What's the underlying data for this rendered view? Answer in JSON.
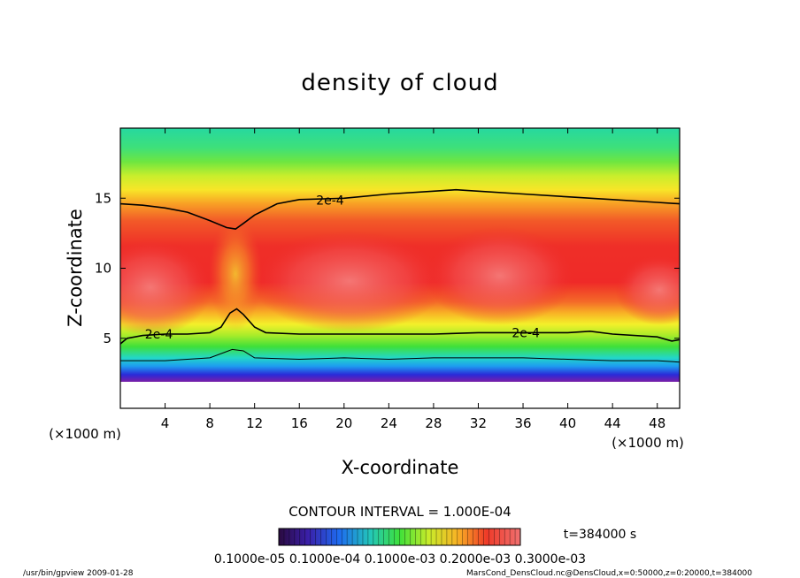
{
  "chart_data": {
    "type": "heatmap",
    "title": "density of cloud",
    "xlabel": "X-coordinate",
    "ylabel": "Z-coordinate",
    "x_unit": "(×1000 m)",
    "z_unit": "(×1000 m)",
    "xlim": [
      0,
      50
    ],
    "ylim": [
      0,
      20
    ],
    "x_ticks": [
      4,
      8,
      12,
      16,
      20,
      24,
      28,
      32,
      36,
      40,
      44,
      48
    ],
    "y_ticks": [
      5,
      10,
      15
    ],
    "colormap": [
      "#7a1fa8",
      "#2a2ad8",
      "#1e9bf0",
      "#23d7d8",
      "#26d98a",
      "#3ee03a",
      "#a8ec2a",
      "#f4f02a",
      "#f8b225",
      "#f3662a",
      "#ef2a28",
      "#f07070"
    ],
    "contours": [
      {
        "level_label": "2e-4",
        "points": [
          [
            0,
            14.6
          ],
          [
            2,
            14.5
          ],
          [
            4,
            14.3
          ],
          [
            6,
            14.0
          ],
          [
            8,
            13.4
          ],
          [
            9.5,
            12.9
          ],
          [
            10.3,
            12.8
          ],
          [
            11,
            13.2
          ],
          [
            12,
            13.8
          ],
          [
            14,
            14.6
          ],
          [
            16,
            14.9
          ],
          [
            20,
            15.0
          ],
          [
            24,
            15.3
          ],
          [
            28,
            15.5
          ],
          [
            30,
            15.6
          ],
          [
            32,
            15.5
          ],
          [
            36,
            15.3
          ],
          [
            40,
            15.1
          ],
          [
            44,
            14.9
          ],
          [
            48,
            14.7
          ],
          [
            50,
            14.6
          ]
        ]
      },
      {
        "level_label": "2e-4",
        "points": [
          [
            0,
            4.6
          ],
          [
            0.6,
            5.0
          ],
          [
            2,
            5.2
          ],
          [
            4,
            5.3
          ],
          [
            6,
            5.3
          ],
          [
            8,
            5.4
          ],
          [
            9,
            5.8
          ],
          [
            9.8,
            6.8
          ],
          [
            10.4,
            7.1
          ],
          [
            11,
            6.7
          ],
          [
            12,
            5.8
          ],
          [
            13,
            5.4
          ],
          [
            16,
            5.3
          ],
          [
            20,
            5.3
          ],
          [
            24,
            5.3
          ],
          [
            28,
            5.3
          ],
          [
            32,
            5.4
          ],
          [
            36,
            5.4
          ],
          [
            40,
            5.4
          ],
          [
            42,
            5.5
          ],
          [
            44,
            5.3
          ],
          [
            48,
            5.1
          ],
          [
            49.3,
            4.8
          ],
          [
            50,
            4.9
          ]
        ]
      }
    ],
    "inner_contour": [
      [
        0,
        3.4
      ],
      [
        4,
        3.4
      ],
      [
        8,
        3.6
      ],
      [
        10,
        4.2
      ],
      [
        11,
        4.1
      ],
      [
        12,
        3.6
      ],
      [
        16,
        3.5
      ],
      [
        20,
        3.6
      ],
      [
        24,
        3.5
      ],
      [
        28,
        3.6
      ],
      [
        32,
        3.6
      ],
      [
        36,
        3.6
      ],
      [
        40,
        3.5
      ],
      [
        44,
        3.4
      ],
      [
        48,
        3.4
      ],
      [
        50,
        3.3
      ]
    ],
    "contour_interval": "CONTOUR INTERVAL = 1.000E-04",
    "time": "t=384000 s",
    "colorbar_labels": "0.1000e-05 0.1000e-04 0.1000e-03 0.2000e-03 0.3000e-03"
  },
  "footer": {
    "left": "/usr/bin/gpview  2009-01-28",
    "right": "MarsCond_DensCloud.nc@DensCloud,x=0:50000,z=0:20000,t=384000"
  }
}
